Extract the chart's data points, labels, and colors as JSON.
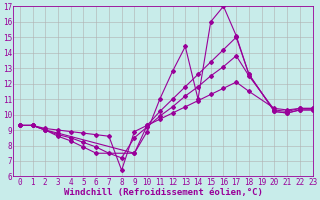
{
  "bg_color": "#c8ecea",
  "line_color": "#990099",
  "grid_color": "#b0b0b0",
  "xlabel": "Windchill (Refroidissement éolien,°C)",
  "ylim": [
    6,
    17
  ],
  "xlim": [
    -0.5,
    23
  ],
  "yticks": [
    6,
    7,
    8,
    9,
    10,
    11,
    12,
    13,
    14,
    15,
    16,
    17
  ],
  "xticks": [
    0,
    1,
    2,
    3,
    4,
    5,
    6,
    7,
    8,
    9,
    10,
    11,
    12,
    13,
    14,
    15,
    16,
    17,
    18,
    19,
    20,
    21,
    22,
    23
  ],
  "lines": [
    {
      "x": [
        0,
        1,
        2,
        3,
        9,
        10,
        11,
        12,
        13,
        14,
        15,
        16,
        17,
        18,
        20,
        21,
        22,
        23
      ],
      "y": [
        9.3,
        9.3,
        9.0,
        8.8,
        7.5,
        8.9,
        11.0,
        12.8,
        14.4,
        11.0,
        16.0,
        17.0,
        15.1,
        12.6,
        10.2,
        10.1,
        10.3,
        10.3
      ]
    },
    {
      "x": [
        0,
        1,
        2,
        3,
        4,
        5,
        6,
        9,
        10,
        11,
        12,
        13,
        14,
        15,
        16,
        17,
        18,
        20,
        21,
        22,
        23
      ],
      "y": [
        9.3,
        9.3,
        9.0,
        8.6,
        8.3,
        7.9,
        7.5,
        7.5,
        9.3,
        10.2,
        11.0,
        11.8,
        12.6,
        13.4,
        14.2,
        15.0,
        12.6,
        10.2,
        10.1,
        10.3,
        10.3
      ]
    },
    {
      "x": [
        0,
        1,
        2,
        3,
        4,
        5,
        6,
        7,
        8,
        9,
        10,
        11,
        12,
        13,
        14,
        15,
        16,
        17,
        18,
        20,
        21,
        22,
        23
      ],
      "y": [
        9.3,
        9.3,
        9.0,
        8.7,
        8.5,
        8.2,
        7.9,
        7.5,
        7.2,
        8.5,
        9.2,
        9.9,
        10.5,
        11.2,
        11.8,
        12.5,
        13.1,
        13.8,
        12.5,
        10.3,
        10.2,
        10.4,
        10.4
      ]
    },
    {
      "x": [
        0,
        1,
        2,
        3,
        4,
        5,
        6,
        7,
        8,
        9,
        10,
        11,
        12,
        13,
        14,
        15,
        16,
        17,
        18,
        20,
        21,
        22,
        23
      ],
      "y": [
        9.3,
        9.3,
        9.1,
        9.0,
        8.9,
        8.8,
        8.7,
        8.6,
        6.4,
        8.9,
        9.3,
        9.7,
        10.1,
        10.5,
        10.9,
        11.3,
        11.7,
        12.1,
        11.5,
        10.4,
        10.3,
        10.4,
        10.4
      ]
    }
  ],
  "xlabel_fontsize": 6.5,
  "tick_fontsize": 5.5,
  "marker": "D",
  "markersize": 2.0,
  "linewidth": 0.8
}
